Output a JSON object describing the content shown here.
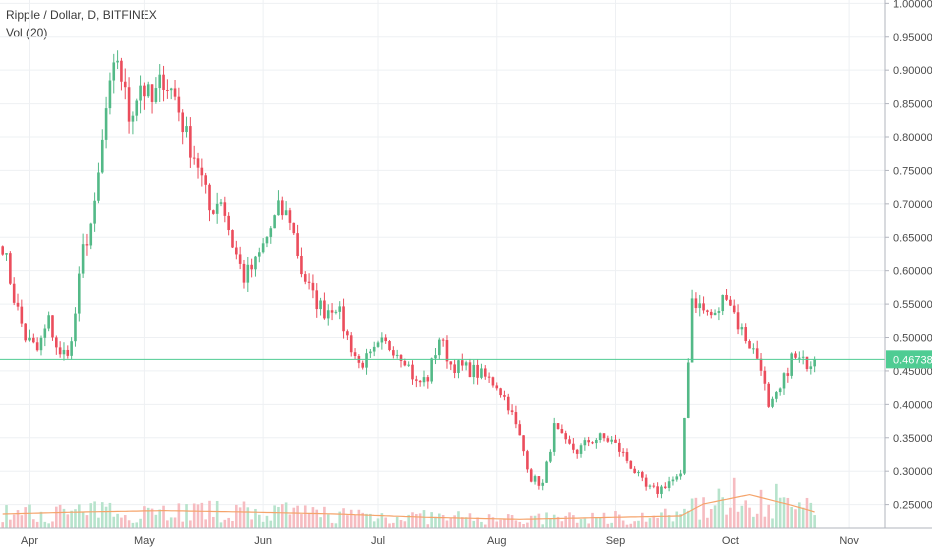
{
  "legend": {
    "symbol_line": "Ripple / Dollar, D, BITFINEX",
    "volume_line": "Vol (20)"
  },
  "colors": {
    "up": "#53b987",
    "down": "#eb4d5c",
    "up_volume": "#b7e3cc",
    "down_volume": "#f6bcc1",
    "volume_ma": "#f5a46b",
    "last_price": "#4fcc93",
    "grid": "#eef0f3"
  },
  "chart_data": {
    "type": "candlestick",
    "title": "",
    "y_ticks": [
      "0.25000",
      "0.30000",
      "0.35000",
      "0.40000",
      "0.45000",
      "0.50000",
      "0.55000",
      "0.60000",
      "0.65000",
      "0.70000",
      "0.75000",
      "0.80000",
      "0.85000",
      "0.90000",
      "0.95000",
      "1.00000"
    ],
    "ylim": [
      0.215,
      1.005
    ],
    "x_ticks": [
      "Apr",
      "May",
      "Jun",
      "Jul",
      "Aug",
      "Sep",
      "Oct",
      "Nov"
    ],
    "last_price": "0.46738",
    "volume_study": "Vol (20)",
    "grid": true,
    "anchors": [
      [
        "2018-03-25",
        0.64
      ],
      [
        "2018-03-28",
        0.56
      ],
      [
        "2018-03-31",
        0.5
      ],
      [
        "2018-04-03",
        0.48
      ],
      [
        "2018-04-06",
        0.525
      ],
      [
        "2018-04-09",
        0.47
      ],
      [
        "2018-04-12",
        0.49
      ],
      [
        "2018-04-15",
        0.63
      ],
      [
        "2018-04-18",
        0.69
      ],
      [
        "2018-04-21",
        0.84
      ],
      [
        "2018-04-24",
        0.92
      ],
      [
        "2018-04-27",
        0.83
      ],
      [
        "2018-04-30",
        0.88
      ],
      [
        "2018-05-03",
        0.85
      ],
      [
        "2018-05-06",
        0.89
      ],
      [
        "2018-05-09",
        0.86
      ],
      [
        "2018-05-12",
        0.8
      ],
      [
        "2018-05-15",
        0.76
      ],
      [
        "2018-05-18",
        0.69
      ],
      [
        "2018-05-21",
        0.71
      ],
      [
        "2018-05-24",
        0.64
      ],
      [
        "2018-05-27",
        0.59
      ],
      [
        "2018-05-30",
        0.61
      ],
      [
        "2018-06-02",
        0.65
      ],
      [
        "2018-06-05",
        0.69
      ],
      [
        "2018-06-08",
        0.68
      ],
      [
        "2018-06-11",
        0.6
      ],
      [
        "2018-06-14",
        0.56
      ],
      [
        "2018-06-17",
        0.54
      ],
      [
        "2018-06-20",
        0.55
      ],
      [
        "2018-06-23",
        0.5
      ],
      [
        "2018-06-26",
        0.46
      ],
      [
        "2018-06-29",
        0.47
      ],
      [
        "2018-07-02",
        0.49
      ],
      [
        "2018-07-05",
        0.485
      ],
      [
        "2018-07-08",
        0.47
      ],
      [
        "2018-07-11",
        0.43
      ],
      [
        "2018-07-14",
        0.44
      ],
      [
        "2018-07-17",
        0.5
      ],
      [
        "2018-07-20",
        0.46
      ],
      [
        "2018-07-23",
        0.455
      ],
      [
        "2018-07-26",
        0.45
      ],
      [
        "2018-07-29",
        0.44
      ],
      [
        "2018-08-01",
        0.43
      ],
      [
        "2018-08-04",
        0.4
      ],
      [
        "2018-08-07",
        0.35
      ],
      [
        "2018-08-10",
        0.29
      ],
      [
        "2018-08-13",
        0.28
      ],
      [
        "2018-08-16",
        0.365
      ],
      [
        "2018-08-19",
        0.34
      ],
      [
        "2018-08-22",
        0.33
      ],
      [
        "2018-08-25",
        0.345
      ],
      [
        "2018-08-28",
        0.35
      ],
      [
        "2018-08-31",
        0.345
      ],
      [
        "2018-09-03",
        0.325
      ],
      [
        "2018-09-06",
        0.3
      ],
      [
        "2018-09-09",
        0.275
      ],
      [
        "2018-09-12",
        0.27
      ],
      [
        "2018-09-15",
        0.285
      ],
      [
        "2018-09-18",
        0.29
      ],
      [
        "2018-09-21",
        0.56
      ],
      [
        "2018-09-24",
        0.54
      ],
      [
        "2018-09-27",
        0.53
      ],
      [
        "2018-09-30",
        0.57
      ],
      [
        "2018-10-03",
        0.52
      ],
      [
        "2018-10-06",
        0.49
      ],
      [
        "2018-10-09",
        0.46
      ],
      [
        "2018-10-11",
        0.39
      ],
      [
        "2018-10-14",
        0.42
      ],
      [
        "2018-10-17",
        0.47
      ],
      [
        "2018-10-20",
        0.462
      ],
      [
        "2018-10-23",
        0.467
      ]
    ],
    "volume_ma_anchors": [
      [
        "2018-03-25",
        0.021
      ],
      [
        "2018-04-15",
        0.024
      ],
      [
        "2018-05-06",
        0.026
      ],
      [
        "2018-05-27",
        0.024
      ],
      [
        "2018-06-20",
        0.021
      ],
      [
        "2018-07-14",
        0.016
      ],
      [
        "2018-08-07",
        0.013
      ],
      [
        "2018-08-31",
        0.016
      ],
      [
        "2018-09-18",
        0.018
      ],
      [
        "2018-09-24",
        0.036
      ],
      [
        "2018-10-06",
        0.05
      ],
      [
        "2018-10-17",
        0.034
      ],
      [
        "2018-10-23",
        0.024
      ]
    ]
  }
}
